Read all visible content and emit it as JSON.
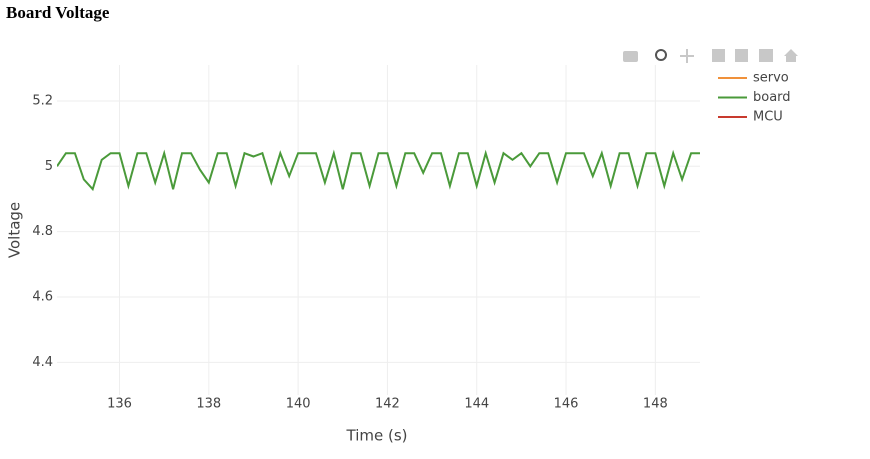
{
  "chart_data": {
    "type": "line",
    "title": "Board Voltage",
    "xlabel": "Time (s)",
    "ylabel": "Voltage",
    "xlim": [
      134.6,
      149.0
    ],
    "ylim": [
      4.3,
      5.31
    ],
    "xticks": [
      136,
      138,
      140,
      142,
      144,
      146,
      148
    ],
    "yticks": [
      4.4,
      4.6,
      4.8,
      5,
      5.2
    ],
    "grid": true,
    "legend": "right",
    "series": [
      {
        "name": "servo",
        "color": "#f0913a",
        "x": [],
        "values": []
      },
      {
        "name": "board",
        "color": "#4a9a3a",
        "x": [
          134.6,
          134.8,
          135,
          135.2,
          135.4,
          135.6,
          135.8,
          136,
          136.2,
          136.4,
          136.6,
          136.8,
          137,
          137.2,
          137.4,
          137.6,
          137.8,
          138,
          138.2,
          138.4,
          138.6,
          138.8,
          139,
          139.2,
          139.4,
          139.6,
          139.8,
          140,
          140.2,
          140.4,
          140.6,
          140.8,
          141,
          141.2,
          141.4,
          141.6,
          141.8,
          142,
          142.2,
          142.4,
          142.6,
          142.8,
          143,
          143.2,
          143.4,
          143.6,
          143.8,
          144,
          144.2,
          144.4,
          144.6,
          144.8,
          145,
          145.2,
          145.4,
          145.6,
          145.8,
          146,
          146.2,
          146.4,
          146.6,
          146.8,
          147,
          147.2,
          147.4,
          147.6,
          147.8,
          148,
          148.2,
          148.4,
          148.6,
          148.8,
          149
        ],
        "values": [
          5.0,
          5.04,
          5.04,
          4.96,
          4.93,
          5.02,
          5.04,
          5.04,
          4.94,
          5.04,
          5.04,
          4.95,
          5.04,
          4.93,
          5.04,
          5.04,
          4.99,
          4.95,
          5.04,
          5.04,
          4.94,
          5.04,
          5.03,
          5.04,
          4.95,
          5.04,
          4.97,
          5.04,
          5.04,
          5.04,
          4.95,
          5.04,
          4.93,
          5.04,
          5.04,
          4.94,
          5.04,
          5.04,
          4.94,
          5.04,
          5.04,
          4.98,
          5.04,
          5.04,
          4.94,
          5.04,
          5.04,
          4.94,
          5.04,
          4.95,
          5.04,
          5.02,
          5.04,
          5.0,
          5.04,
          5.04,
          4.95,
          5.04,
          5.04,
          5.04,
          4.97,
          5.04,
          4.94,
          5.04,
          5.04,
          4.94,
          5.04,
          5.04,
          4.94,
          5.04,
          4.96,
          5.04,
          5.04
        ]
      },
      {
        "name": "MCU",
        "color": "#c83a2e",
        "x": [],
        "values": []
      }
    ]
  }
}
